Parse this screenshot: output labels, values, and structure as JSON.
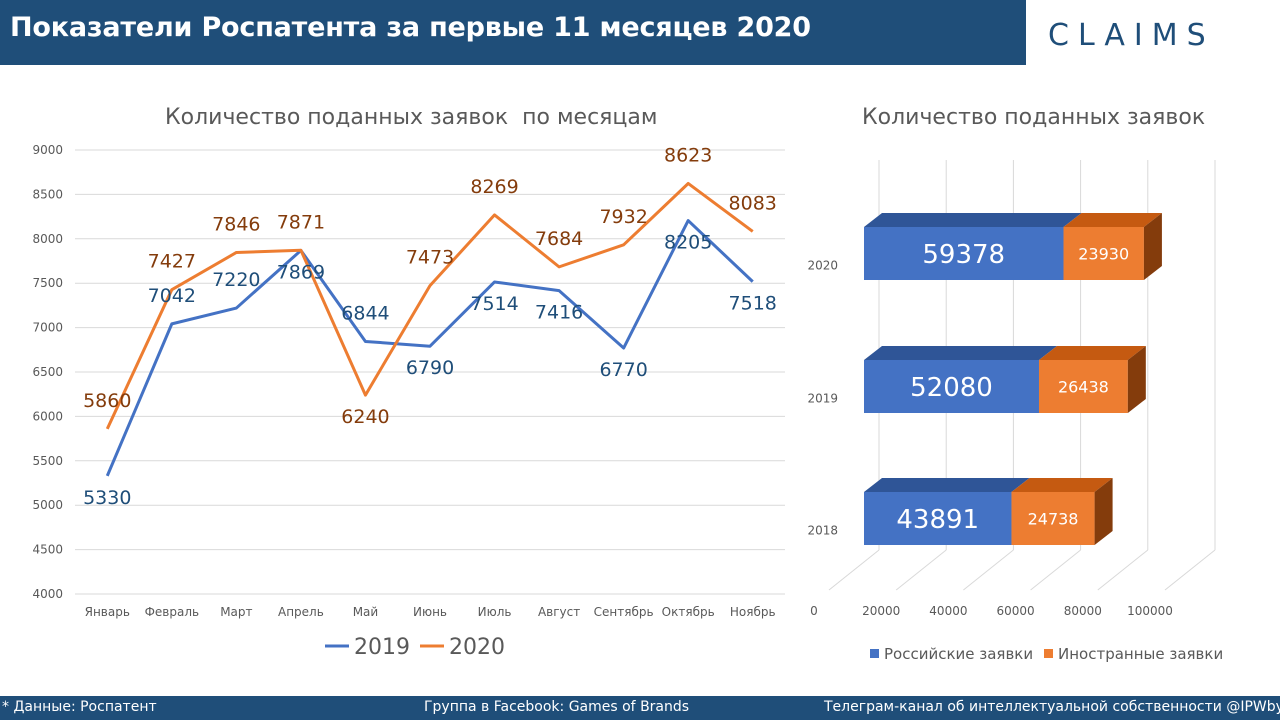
{
  "header": {
    "title": "Показатели Роспатента за первые 11 месяцев 2020",
    "logo": "CLAIMS"
  },
  "colors": {
    "header_bg": "#1f4e79",
    "series_2019": "#4472c4",
    "series_2020": "#ed7d31",
    "label_2019": "#1f4e79",
    "label_2020": "#843c0c",
    "bar_russian": "#4472c4",
    "bar_foreign": "#ed7d31"
  },
  "footer": {
    "source": "* Данные: Роспатент",
    "facebook": "Группа в Facebook: Games of Brands",
    "telegram": "Телеграм-канал  об интеллектуальной  собственности  @IPWbyCLAIMS"
  },
  "chart_data": [
    {
      "type": "line",
      "title": "Количество поданных заявок  по месяцам",
      "categories": [
        "Январь",
        "Февраль",
        "Март",
        "Апрель",
        "Май",
        "Июнь",
        "Июль",
        "Август",
        "Сентябрь",
        "Октябрь",
        "Ноябрь"
      ],
      "series": [
        {
          "name": "2019",
          "values": [
            5330,
            7042,
            7220,
            7869,
            6844,
            6790,
            7514,
            7416,
            6770,
            8205,
            7518
          ]
        },
        {
          "name": "2020",
          "values": [
            5860,
            7427,
            7846,
            7871,
            6240,
            7473,
            8269,
            7684,
            7932,
            8623,
            8083
          ]
        }
      ],
      "ylim": [
        4000,
        9000
      ],
      "yticks": [
        4000,
        4500,
        5000,
        5500,
        6000,
        6500,
        7000,
        7500,
        8000,
        8500,
        9000
      ],
      "grid": true,
      "legend": "bottom"
    },
    {
      "type": "bar",
      "orientation": "horizontal",
      "stacked": true,
      "title": "Количество поданных заявок",
      "categories": [
        "2020",
        "2019",
        "2018"
      ],
      "series": [
        {
          "name": "Российские заявки",
          "values": [
            59378,
            52080,
            43891
          ]
        },
        {
          "name": "Иностранные заявки",
          "values": [
            23930,
            26438,
            24738
          ]
        }
      ],
      "xlim": [
        0,
        100000
      ],
      "xticks": [
        0,
        20000,
        40000,
        60000,
        80000,
        100000
      ],
      "legend": "bottom"
    }
  ]
}
